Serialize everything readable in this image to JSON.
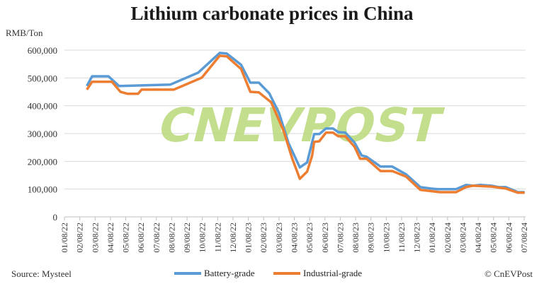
{
  "chart_data": {
    "type": "line",
    "title": "Lithium carbonate prices in China",
    "ylabel": "RMB/Ton",
    "ylim": [
      0,
      600000
    ],
    "yticks": [
      0,
      100000,
      200000,
      300000,
      400000,
      500000,
      600000
    ],
    "ytick_labels": [
      "0",
      "100,000",
      "200,000",
      "300,000",
      "400,000",
      "500,000",
      "600,000"
    ],
    "xtick_labels": [
      "01/08/22",
      "02/08/22",
      "03/08/22",
      "04/08/22",
      "05/08/22",
      "06/08/22",
      "07/08/22",
      "08/08/22",
      "09/08/22",
      "10/08/22",
      "11/08/22",
      "12/08/22",
      "01/08/23",
      "02/08/23",
      "03/08/23",
      "04/08/23",
      "05/08/23",
      "06/08/23",
      "07/08/23",
      "08/08/23",
      "09/08/23",
      "10/08/23",
      "11/08/23",
      "12/08/23",
      "01/08/24",
      "02/08/24",
      "03/08/24",
      "04/08/24",
      "05/08/24",
      "06/08/24",
      "07/08/24"
    ],
    "grid": true,
    "legend": "bottom",
    "series": [
      {
        "name": "Battery-grade",
        "color": "#5b9bd5",
        "points": [
          [
            "2022-02-22",
            471000
          ],
          [
            "2022-03-02",
            506000
          ],
          [
            "2022-04-04",
            506000
          ],
          [
            "2022-04-25",
            471000
          ],
          [
            "2022-08-05",
            476000
          ],
          [
            "2022-09-30",
            519000
          ],
          [
            "2022-11-12",
            590000
          ],
          [
            "2022-11-26",
            588000
          ],
          [
            "2022-12-24",
            547000
          ],
          [
            "2023-01-12",
            483000
          ],
          [
            "2023-01-29",
            483000
          ],
          [
            "2023-02-19",
            445000
          ],
          [
            "2023-03-08",
            374000
          ],
          [
            "2023-03-27",
            265000
          ],
          [
            "2023-04-19",
            178000
          ],
          [
            "2023-05-03",
            196000
          ],
          [
            "2023-05-17",
            298000
          ],
          [
            "2023-05-27",
            298000
          ],
          [
            "2023-06-10",
            318000
          ],
          [
            "2023-06-24",
            318000
          ],
          [
            "2023-07-04",
            305000
          ],
          [
            "2023-07-18",
            303000
          ],
          [
            "2023-08-06",
            267000
          ],
          [
            "2023-08-20",
            221000
          ],
          [
            "2023-08-30",
            216000
          ],
          [
            "2023-09-27",
            181000
          ],
          [
            "2023-10-20",
            181000
          ],
          [
            "2023-11-17",
            153000
          ],
          [
            "2023-12-15",
            107000
          ],
          [
            "2024-01-05",
            102000
          ],
          [
            "2024-01-19",
            100000
          ],
          [
            "2024-02-25",
            100000
          ],
          [
            "2024-03-14",
            115000
          ],
          [
            "2024-03-28",
            112000
          ],
          [
            "2024-04-12",
            115000
          ],
          [
            "2024-05-04",
            112000
          ],
          [
            "2024-05-18",
            107000
          ],
          [
            "2024-06-02",
            107000
          ],
          [
            "2024-06-26",
            89000
          ],
          [
            "2024-07-09",
            89000
          ]
        ]
      },
      {
        "name": "Industrial-grade",
        "color": "#ed7d31",
        "points": [
          [
            "2022-02-22",
            458000
          ],
          [
            "2022-03-02",
            486000
          ],
          [
            "2022-04-11",
            486000
          ],
          [
            "2022-04-28",
            450000
          ],
          [
            "2022-05-12",
            443000
          ],
          [
            "2022-06-02",
            443000
          ],
          [
            "2022-06-09",
            458000
          ],
          [
            "2022-08-12",
            458000
          ],
          [
            "2022-09-01",
            473000
          ],
          [
            "2022-10-07",
            501000
          ],
          [
            "2022-11-12",
            580000
          ],
          [
            "2022-11-26",
            578000
          ],
          [
            "2022-12-24",
            532000
          ],
          [
            "2023-01-12",
            450000
          ],
          [
            "2023-01-29",
            448000
          ],
          [
            "2023-02-23",
            412000
          ],
          [
            "2023-03-17",
            310000
          ],
          [
            "2023-04-04",
            209000
          ],
          [
            "2023-04-19",
            137000
          ],
          [
            "2023-05-03",
            163000
          ],
          [
            "2023-05-13",
            221000
          ],
          [
            "2023-05-17",
            270000
          ],
          [
            "2023-05-27",
            272000
          ],
          [
            "2023-06-10",
            303000
          ],
          [
            "2023-06-24",
            303000
          ],
          [
            "2023-07-04",
            290000
          ],
          [
            "2023-07-18",
            290000
          ],
          [
            "2023-08-06",
            252000
          ],
          [
            "2023-08-17",
            209000
          ],
          [
            "2023-08-30",
            209000
          ],
          [
            "2023-09-27",
            165000
          ],
          [
            "2023-10-20",
            165000
          ],
          [
            "2023-11-17",
            145000
          ],
          [
            "2023-12-15",
            97000
          ],
          [
            "2024-01-23",
            89000
          ],
          [
            "2024-02-25",
            89000
          ],
          [
            "2024-03-14",
            107000
          ],
          [
            "2024-03-28",
            112000
          ],
          [
            "2024-05-04",
            109000
          ],
          [
            "2024-06-02",
            102000
          ],
          [
            "2024-06-26",
            87000
          ],
          [
            "2024-07-09",
            87000
          ]
        ]
      }
    ]
  },
  "source": "Source: Mysteel",
  "credit": "© CnEVPost",
  "watermark": "CNEVPOST"
}
